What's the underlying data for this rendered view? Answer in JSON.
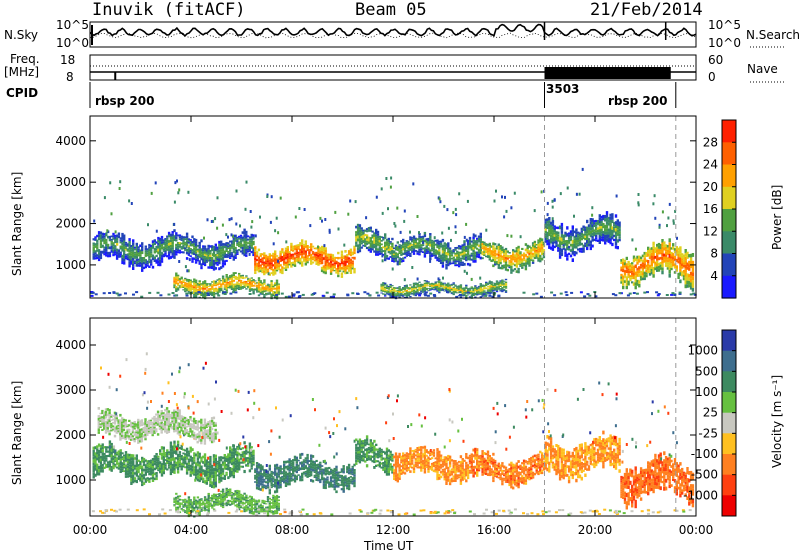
{
  "header": {
    "station": "Inuvik (fitACF)",
    "beam": "Beam 05",
    "date": "21/Feb/2014"
  },
  "sky_panel": {
    "left_label": "N.Sky",
    "right_label": "N.Search",
    "left_ticks": [
      "10^5",
      "10^0"
    ],
    "right_ticks": [
      "10^5",
      "10^0"
    ]
  },
  "freq_panel": {
    "left_label_1": "Freq.",
    "left_label_2": "[MHz]",
    "left_ticks": [
      "18",
      "8"
    ],
    "right_label": "Nave",
    "right_ticks": [
      "60",
      "0"
    ]
  },
  "cpid_panel": {
    "label": "CPID",
    "segments": [
      "rbsp 200",
      "3503",
      "rbsp 200"
    ]
  },
  "chart_data": [
    {
      "type": "heatmap",
      "title": "Power",
      "ylabel": "Slant Range [km]",
      "ylim": [
        200,
        4600
      ],
      "yticks": [
        "1000",
        "2000",
        "3000",
        "4000"
      ],
      "x_range_hours": [
        0,
        24
      ],
      "colorbar_label": "Power [dB]",
      "colorbar_ticks": [
        "4",
        "8",
        "12",
        "16",
        "20",
        "24",
        "28"
      ],
      "colorbar_colors": [
        "#1a1aff",
        "#2244b8",
        "#3a8a68",
        "#50a040",
        "#e0d020",
        "#ffa000",
        "#ff6000",
        "#ff2000"
      ],
      "bands": [
        {
          "t_start": 0.1,
          "t_end": 6.5,
          "r_center": 1350,
          "r_half": 320,
          "level": 0.45
        },
        {
          "t_start": 6.5,
          "t_end": 10.5,
          "r_center": 1150,
          "r_half": 280,
          "level": 0.95
        },
        {
          "t_start": 10.5,
          "t_end": 12.0,
          "r_center": 1500,
          "r_half": 300,
          "level": 0.55
        },
        {
          "t_start": 12.0,
          "t_end": 15.5,
          "r_center": 1350,
          "r_half": 300,
          "level": 0.5
        },
        {
          "t_start": 15.5,
          "t_end": 18.0,
          "r_center": 1250,
          "r_half": 280,
          "level": 0.75
        },
        {
          "t_start": 18.0,
          "t_end": 21.0,
          "r_center": 1700,
          "r_half": 380,
          "level": 0.45
        },
        {
          "t_start": 21.0,
          "t_end": 23.9,
          "r_center": 1000,
          "r_half": 400,
          "level": 0.85
        },
        {
          "t_start": 3.3,
          "t_end": 7.5,
          "r_center": 500,
          "r_half": 200,
          "level": 0.75
        },
        {
          "t_start": 11.5,
          "t_end": 16.5,
          "r_center": 420,
          "r_half": 150,
          "level": 0.6
        }
      ]
    },
    {
      "type": "heatmap",
      "title": "Velocity",
      "ylabel": "Slant Range [km]",
      "ylim": [
        200,
        4600
      ],
      "yticks": [
        "1000",
        "2000",
        "3000",
        "4000"
      ],
      "xlabel": "Time UT",
      "xticks": [
        "00:00",
        "04:00",
        "08:00",
        "12:00",
        "16:00",
        "20:00",
        "00:00"
      ],
      "x_range_hours": [
        0,
        24
      ],
      "colorbar_label": "Velocity [m s⁻¹]",
      "colorbar_ticks": [
        "1000",
        "500",
        "100",
        "25",
        "-25",
        "-100",
        "-500",
        "-1000"
      ],
      "colorbar_colors": [
        "#2a3aa8",
        "#3e6e8e",
        "#3d8a60",
        "#66c040",
        "#c8c8c0",
        "#ffc020",
        "#ff8020",
        "#ff4010",
        "#ee0000"
      ],
      "bands": [
        {
          "t_start": 0.1,
          "t_end": 6.5,
          "r_center": 1350,
          "r_half": 320,
          "level": 0.28
        },
        {
          "t_start": 6.5,
          "t_end": 10.5,
          "r_center": 1150,
          "r_half": 280,
          "level": 0.22
        },
        {
          "t_start": 10.5,
          "t_end": 12.0,
          "r_center": 1500,
          "r_half": 300,
          "level": 0.28
        },
        {
          "t_start": 12.0,
          "t_end": 15.0,
          "r_center": 1350,
          "r_half": 300,
          "level": 0.72
        },
        {
          "t_start": 15.0,
          "t_end": 18.0,
          "r_center": 1250,
          "r_half": 280,
          "level": 0.75
        },
        {
          "t_start": 18.0,
          "t_end": 21.0,
          "r_center": 1500,
          "r_half": 360,
          "level": 0.7
        },
        {
          "t_start": 21.0,
          "t_end": 23.9,
          "r_center": 1000,
          "r_half": 400,
          "level": 0.78
        },
        {
          "t_start": 0.3,
          "t_end": 5.0,
          "r_center": 2200,
          "r_half": 250,
          "level": 0.45
        },
        {
          "t_start": 3.3,
          "t_end": 7.5,
          "r_center": 500,
          "r_half": 200,
          "level": 0.35
        }
      ]
    }
  ]
}
